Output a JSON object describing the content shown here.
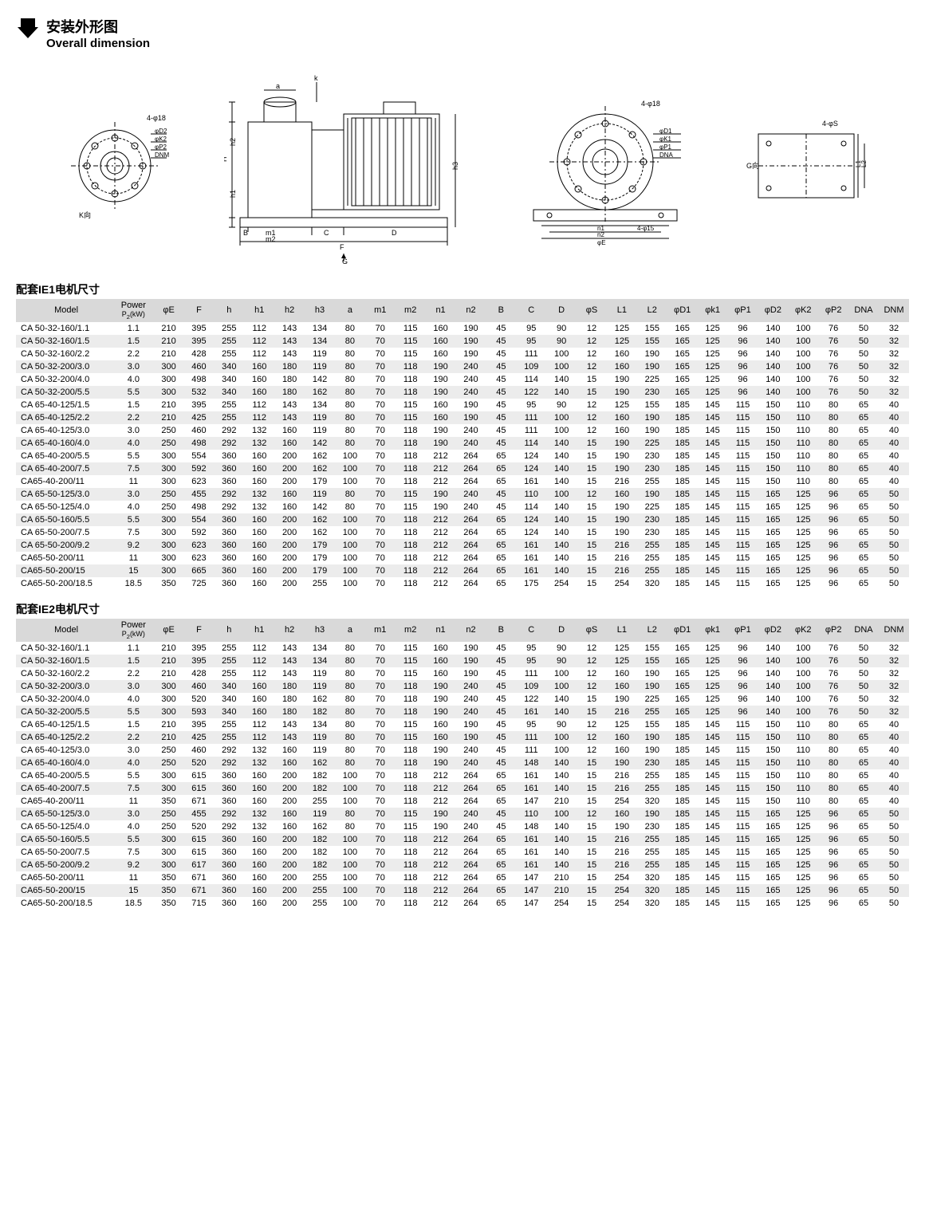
{
  "title_cn": "安装外形图",
  "title_en": "Overall dimension",
  "diagram_labels": [
    "K向",
    "φD2",
    "φK2",
    "φP2",
    "DNM",
    "4-φ18",
    "h2",
    "H",
    "h1",
    "B",
    "m1",
    "m2",
    "C",
    "D",
    "F",
    "k",
    "a",
    "h3",
    "G",
    "4-φ18",
    "φD1",
    "φK1",
    "φP1",
    "DNA",
    "n1",
    "n2",
    "φE",
    "4-φ15",
    "4-φS",
    "G向",
    "L1",
    "L2"
  ],
  "section1_label": "配套IE1电机尺寸",
  "section2_label": "配套IE2电机尺寸",
  "columns": [
    "Model",
    "Power P₂(kW)",
    "φE",
    "F",
    "h",
    "h1",
    "h2",
    "h3",
    "a",
    "m1",
    "m2",
    "n1",
    "n2",
    "B",
    "C",
    "D",
    "φS",
    "L1",
    "L2",
    "φD1",
    "φk1",
    "φP1",
    "φD2",
    "φK2",
    "φP2",
    "DNA",
    "DNM"
  ],
  "header_colors": {
    "bg": "#d9d9d9"
  },
  "row_alt_color": "#ececec",
  "table1": [
    [
      "CA 50-32-160/1.1",
      "1.1",
      "210",
      "395",
      "255",
      "112",
      "143",
      "134",
      "80",
      "70",
      "115",
      "160",
      "190",
      "45",
      "95",
      "90",
      "12",
      "125",
      "155",
      "165",
      "125",
      "96",
      "140",
      "100",
      "76",
      "50",
      "32"
    ],
    [
      "CA 50-32-160/1.5",
      "1.5",
      "210",
      "395",
      "255",
      "112",
      "143",
      "134",
      "80",
      "70",
      "115",
      "160",
      "190",
      "45",
      "95",
      "90",
      "12",
      "125",
      "155",
      "165",
      "125",
      "96",
      "140",
      "100",
      "76",
      "50",
      "32"
    ],
    [
      "CA 50-32-160/2.2",
      "2.2",
      "210",
      "428",
      "255",
      "112",
      "143",
      "119",
      "80",
      "70",
      "115",
      "160",
      "190",
      "45",
      "111",
      "100",
      "12",
      "160",
      "190",
      "165",
      "125",
      "96",
      "140",
      "100",
      "76",
      "50",
      "32"
    ],
    [
      "CA 50-32-200/3.0",
      "3.0",
      "300",
      "460",
      "340",
      "160",
      "180",
      "119",
      "80",
      "70",
      "118",
      "190",
      "240",
      "45",
      "109",
      "100",
      "12",
      "160",
      "190",
      "165",
      "125",
      "96",
      "140",
      "100",
      "76",
      "50",
      "32"
    ],
    [
      "CA 50-32-200/4.0",
      "4.0",
      "300",
      "498",
      "340",
      "160",
      "180",
      "142",
      "80",
      "70",
      "118",
      "190",
      "240",
      "45",
      "114",
      "140",
      "15",
      "190",
      "225",
      "165",
      "125",
      "96",
      "140",
      "100",
      "76",
      "50",
      "32"
    ],
    [
      "CA 50-32-200/5.5",
      "5.5",
      "300",
      "532",
      "340",
      "160",
      "180",
      "162",
      "80",
      "70",
      "118",
      "190",
      "240",
      "45",
      "122",
      "140",
      "15",
      "190",
      "230",
      "165",
      "125",
      "96",
      "140",
      "100",
      "76",
      "50",
      "32"
    ],
    [
      "CA 65-40-125/1.5",
      "1.5",
      "210",
      "395",
      "255",
      "112",
      "143",
      "134",
      "80",
      "70",
      "115",
      "160",
      "190",
      "45",
      "95",
      "90",
      "12",
      "125",
      "155",
      "185",
      "145",
      "115",
      "150",
      "110",
      "80",
      "65",
      "40"
    ],
    [
      "CA 65-40-125/2.2",
      "2.2",
      "210",
      "425",
      "255",
      "112",
      "143",
      "119",
      "80",
      "70",
      "115",
      "160",
      "190",
      "45",
      "111",
      "100",
      "12",
      "160",
      "190",
      "185",
      "145",
      "115",
      "150",
      "110",
      "80",
      "65",
      "40"
    ],
    [
      "CA 65-40-125/3.0",
      "3.0",
      "250",
      "460",
      "292",
      "132",
      "160",
      "119",
      "80",
      "70",
      "118",
      "190",
      "240",
      "45",
      "111",
      "100",
      "12",
      "160",
      "190",
      "185",
      "145",
      "115",
      "150",
      "110",
      "80",
      "65",
      "40"
    ],
    [
      "CA 65-40-160/4.0",
      "4.0",
      "250",
      "498",
      "292",
      "132",
      "160",
      "142",
      "80",
      "70",
      "118",
      "190",
      "240",
      "45",
      "114",
      "140",
      "15",
      "190",
      "225",
      "185",
      "145",
      "115",
      "150",
      "110",
      "80",
      "65",
      "40"
    ],
    [
      "CA 65-40-200/5.5",
      "5.5",
      "300",
      "554",
      "360",
      "160",
      "200",
      "162",
      "100",
      "70",
      "118",
      "212",
      "264",
      "65",
      "124",
      "140",
      "15",
      "190",
      "230",
      "185",
      "145",
      "115",
      "150",
      "110",
      "80",
      "65",
      "40"
    ],
    [
      "CA 65-40-200/7.5",
      "7.5",
      "300",
      "592",
      "360",
      "160",
      "200",
      "162",
      "100",
      "70",
      "118",
      "212",
      "264",
      "65",
      "124",
      "140",
      "15",
      "190",
      "230",
      "185",
      "145",
      "115",
      "150",
      "110",
      "80",
      "65",
      "40"
    ],
    [
      "CA65-40-200/11",
      "11",
      "300",
      "623",
      "360",
      "160",
      "200",
      "179",
      "100",
      "70",
      "118",
      "212",
      "264",
      "65",
      "161",
      "140",
      "15",
      "216",
      "255",
      "185",
      "145",
      "115",
      "150",
      "110",
      "80",
      "65",
      "40"
    ],
    [
      "CA 65-50-125/3.0",
      "3.0",
      "250",
      "455",
      "292",
      "132",
      "160",
      "119",
      "80",
      "70",
      "115",
      "190",
      "240",
      "45",
      "110",
      "100",
      "12",
      "160",
      "190",
      "185",
      "145",
      "115",
      "165",
      "125",
      "96",
      "65",
      "50"
    ],
    [
      "CA 65-50-125/4.0",
      "4.0",
      "250",
      "498",
      "292",
      "132",
      "160",
      "142",
      "80",
      "70",
      "115",
      "190",
      "240",
      "45",
      "114",
      "140",
      "15",
      "190",
      "225",
      "185",
      "145",
      "115",
      "165",
      "125",
      "96",
      "65",
      "50"
    ],
    [
      "CA 65-50-160/5.5",
      "5.5",
      "300",
      "554",
      "360",
      "160",
      "200",
      "162",
      "100",
      "70",
      "118",
      "212",
      "264",
      "65",
      "124",
      "140",
      "15",
      "190",
      "230",
      "185",
      "145",
      "115",
      "165",
      "125",
      "96",
      "65",
      "50"
    ],
    [
      "CA 65-50-200/7.5",
      "7.5",
      "300",
      "592",
      "360",
      "160",
      "200",
      "162",
      "100",
      "70",
      "118",
      "212",
      "264",
      "65",
      "124",
      "140",
      "15",
      "190",
      "230",
      "185",
      "145",
      "115",
      "165",
      "125",
      "96",
      "65",
      "50"
    ],
    [
      "CA 65-50-200/9.2",
      "9.2",
      "300",
      "623",
      "360",
      "160",
      "200",
      "179",
      "100",
      "70",
      "118",
      "212",
      "264",
      "65",
      "161",
      "140",
      "15",
      "216",
      "255",
      "185",
      "145",
      "115",
      "165",
      "125",
      "96",
      "65",
      "50"
    ],
    [
      "CA65-50-200/11",
      "11",
      "300",
      "623",
      "360",
      "160",
      "200",
      "179",
      "100",
      "70",
      "118",
      "212",
      "264",
      "65",
      "161",
      "140",
      "15",
      "216",
      "255",
      "185",
      "145",
      "115",
      "165",
      "125",
      "96",
      "65",
      "50"
    ],
    [
      "CA65-50-200/15",
      "15",
      "300",
      "665",
      "360",
      "160",
      "200",
      "179",
      "100",
      "70",
      "118",
      "212",
      "264",
      "65",
      "161",
      "140",
      "15",
      "216",
      "255",
      "185",
      "145",
      "115",
      "165",
      "125",
      "96",
      "65",
      "50"
    ],
    [
      "CA65-50-200/18.5",
      "18.5",
      "350",
      "725",
      "360",
      "160",
      "200",
      "255",
      "100",
      "70",
      "118",
      "212",
      "264",
      "65",
      "175",
      "254",
      "15",
      "254",
      "320",
      "185",
      "145",
      "115",
      "165",
      "125",
      "96",
      "65",
      "50"
    ]
  ],
  "table2": [
    [
      "CA 50-32-160/1.1",
      "1.1",
      "210",
      "395",
      "255",
      "112",
      "143",
      "134",
      "80",
      "70",
      "115",
      "160",
      "190",
      "45",
      "95",
      "90",
      "12",
      "125",
      "155",
      "165",
      "125",
      "96",
      "140",
      "100",
      "76",
      "50",
      "32"
    ],
    [
      "CA 50-32-160/1.5",
      "1.5",
      "210",
      "395",
      "255",
      "112",
      "143",
      "134",
      "80",
      "70",
      "115",
      "160",
      "190",
      "45",
      "95",
      "90",
      "12",
      "125",
      "155",
      "165",
      "125",
      "96",
      "140",
      "100",
      "76",
      "50",
      "32"
    ],
    [
      "CA 50-32-160/2.2",
      "2.2",
      "210",
      "428",
      "255",
      "112",
      "143",
      "119",
      "80",
      "70",
      "115",
      "160",
      "190",
      "45",
      "111",
      "100",
      "12",
      "160",
      "190",
      "165",
      "125",
      "96",
      "140",
      "100",
      "76",
      "50",
      "32"
    ],
    [
      "CA 50-32-200/3.0",
      "3.0",
      "300",
      "460",
      "340",
      "160",
      "180",
      "119",
      "80",
      "70",
      "118",
      "190",
      "240",
      "45",
      "109",
      "100",
      "12",
      "160",
      "190",
      "165",
      "125",
      "96",
      "140",
      "100",
      "76",
      "50",
      "32"
    ],
    [
      "CA 50-32-200/4.0",
      "4.0",
      "300",
      "520",
      "340",
      "160",
      "180",
      "162",
      "80",
      "70",
      "118",
      "190",
      "240",
      "45",
      "122",
      "140",
      "15",
      "190",
      "225",
      "165",
      "125",
      "96",
      "140",
      "100",
      "76",
      "50",
      "32"
    ],
    [
      "CA 50-32-200/5.5",
      "5.5",
      "300",
      "593",
      "340",
      "160",
      "180",
      "182",
      "80",
      "70",
      "118",
      "190",
      "240",
      "45",
      "161",
      "140",
      "15",
      "216",
      "255",
      "165",
      "125",
      "96",
      "140",
      "100",
      "76",
      "50",
      "32"
    ],
    [
      "CA 65-40-125/1.5",
      "1.5",
      "210",
      "395",
      "255",
      "112",
      "143",
      "134",
      "80",
      "70",
      "115",
      "160",
      "190",
      "45",
      "95",
      "90",
      "12",
      "125",
      "155",
      "185",
      "145",
      "115",
      "150",
      "110",
      "80",
      "65",
      "40"
    ],
    [
      "CA 65-40-125/2.2",
      "2.2",
      "210",
      "425",
      "255",
      "112",
      "143",
      "119",
      "80",
      "70",
      "115",
      "160",
      "190",
      "45",
      "111",
      "100",
      "12",
      "160",
      "190",
      "185",
      "145",
      "115",
      "150",
      "110",
      "80",
      "65",
      "40"
    ],
    [
      "CA 65-40-125/3.0",
      "3.0",
      "250",
      "460",
      "292",
      "132",
      "160",
      "119",
      "80",
      "70",
      "118",
      "190",
      "240",
      "45",
      "111",
      "100",
      "12",
      "160",
      "190",
      "185",
      "145",
      "115",
      "150",
      "110",
      "80",
      "65",
      "40"
    ],
    [
      "CA 65-40-160/4.0",
      "4.0",
      "250",
      "520",
      "292",
      "132",
      "160",
      "162",
      "80",
      "70",
      "118",
      "190",
      "240",
      "45",
      "148",
      "140",
      "15",
      "190",
      "230",
      "185",
      "145",
      "115",
      "150",
      "110",
      "80",
      "65",
      "40"
    ],
    [
      "CA 65-40-200/5.5",
      "5.5",
      "300",
      "615",
      "360",
      "160",
      "200",
      "182",
      "100",
      "70",
      "118",
      "212",
      "264",
      "65",
      "161",
      "140",
      "15",
      "216",
      "255",
      "185",
      "145",
      "115",
      "150",
      "110",
      "80",
      "65",
      "40"
    ],
    [
      "CA 65-40-200/7.5",
      "7.5",
      "300",
      "615",
      "360",
      "160",
      "200",
      "182",
      "100",
      "70",
      "118",
      "212",
      "264",
      "65",
      "161",
      "140",
      "15",
      "216",
      "255",
      "185",
      "145",
      "115",
      "150",
      "110",
      "80",
      "65",
      "40"
    ],
    [
      "CA65-40-200/11",
      "11",
      "350",
      "671",
      "360",
      "160",
      "200",
      "255",
      "100",
      "70",
      "118",
      "212",
      "264",
      "65",
      "147",
      "210",
      "15",
      "254",
      "320",
      "185",
      "145",
      "115",
      "150",
      "110",
      "80",
      "65",
      "40"
    ],
    [
      "CA 65-50-125/3.0",
      "3.0",
      "250",
      "455",
      "292",
      "132",
      "160",
      "119",
      "80",
      "70",
      "115",
      "190",
      "240",
      "45",
      "110",
      "100",
      "12",
      "160",
      "190",
      "185",
      "145",
      "115",
      "165",
      "125",
      "96",
      "65",
      "50"
    ],
    [
      "CA 65-50-125/4.0",
      "4.0",
      "250",
      "520",
      "292",
      "132",
      "160",
      "162",
      "80",
      "70",
      "115",
      "190",
      "240",
      "45",
      "148",
      "140",
      "15",
      "190",
      "230",
      "185",
      "145",
      "115",
      "165",
      "125",
      "96",
      "65",
      "50"
    ],
    [
      "CA 65-50-160/5.5",
      "5.5",
      "300",
      "615",
      "360",
      "160",
      "200",
      "182",
      "100",
      "70",
      "118",
      "212",
      "264",
      "65",
      "161",
      "140",
      "15",
      "216",
      "255",
      "185",
      "145",
      "115",
      "165",
      "125",
      "96",
      "65",
      "50"
    ],
    [
      "CA 65-50-200/7.5",
      "7.5",
      "300",
      "615",
      "360",
      "160",
      "200",
      "182",
      "100",
      "70",
      "118",
      "212",
      "264",
      "65",
      "161",
      "140",
      "15",
      "216",
      "255",
      "185",
      "145",
      "115",
      "165",
      "125",
      "96",
      "65",
      "50"
    ],
    [
      "CA 65-50-200/9.2",
      "9.2",
      "300",
      "617",
      "360",
      "160",
      "200",
      "182",
      "100",
      "70",
      "118",
      "212",
      "264",
      "65",
      "161",
      "140",
      "15",
      "216",
      "255",
      "185",
      "145",
      "115",
      "165",
      "125",
      "96",
      "65",
      "50"
    ],
    [
      "CA65-50-200/11",
      "11",
      "350",
      "671",
      "360",
      "160",
      "200",
      "255",
      "100",
      "70",
      "118",
      "212",
      "264",
      "65",
      "147",
      "210",
      "15",
      "254",
      "320",
      "185",
      "145",
      "115",
      "165",
      "125",
      "96",
      "65",
      "50"
    ],
    [
      "CA65-50-200/15",
      "15",
      "350",
      "671",
      "360",
      "160",
      "200",
      "255",
      "100",
      "70",
      "118",
      "212",
      "264",
      "65",
      "147",
      "210",
      "15",
      "254",
      "320",
      "185",
      "145",
      "115",
      "165",
      "125",
      "96",
      "65",
      "50"
    ],
    [
      "CA65-50-200/18.5",
      "18.5",
      "350",
      "715",
      "360",
      "160",
      "200",
      "255",
      "100",
      "70",
      "118",
      "212",
      "264",
      "65",
      "147",
      "254",
      "15",
      "254",
      "320",
      "185",
      "145",
      "115",
      "165",
      "125",
      "96",
      "65",
      "50"
    ]
  ]
}
